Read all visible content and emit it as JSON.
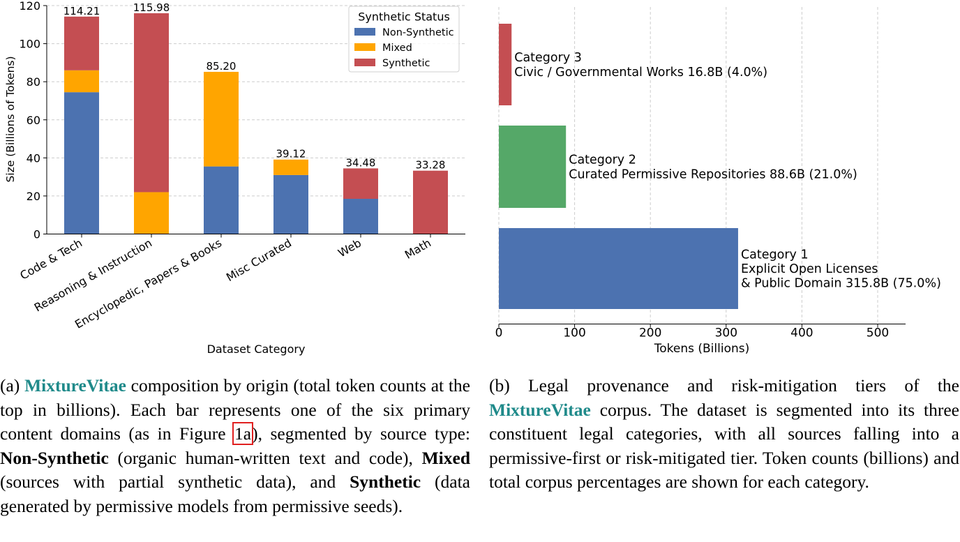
{
  "colors": {
    "non_synthetic": "#4c72b0",
    "mixed": "#ffa500",
    "synthetic": "#c44e52",
    "category1": "#4c72b0",
    "category2": "#55a868",
    "category3": "#c44e52",
    "teal": "#1f8a8a"
  },
  "chart_data": [
    {
      "type": "bar",
      "stacked": true,
      "title": "",
      "xlabel": "Dataset Category",
      "ylabel": "Size (Billions of Tokens)",
      "ylim": [
        0,
        120
      ],
      "yticks": [
        0,
        20,
        40,
        60,
        80,
        100,
        120
      ],
      "grid": "y",
      "categories": [
        "Code & Tech",
        "Reasoning & Instruction",
        "Encyclopedic, Papers & Books",
        "Misc Curated",
        "Web",
        "Math"
      ],
      "series": [
        {
          "name": "Non-Synthetic",
          "values": [
            74.5,
            0,
            35.5,
            31.0,
            18.5,
            0
          ]
        },
        {
          "name": "Mixed",
          "values": [
            11.5,
            22.0,
            49.7,
            8.12,
            0,
            0
          ]
        },
        {
          "name": "Synthetic",
          "values": [
            28.21,
            93.98,
            0,
            0,
            15.98,
            33.28
          ]
        }
      ],
      "totals": [
        "114.21",
        "115.98",
        "85.20",
        "39.12",
        "34.48",
        "33.28"
      ],
      "legend": {
        "title": "Synthetic Status",
        "position": "top-right"
      }
    },
    {
      "type": "bar",
      "orientation": "horizontal",
      "title": "",
      "xlabel": "Tokens (Billions)",
      "ylabel": "",
      "xlim": [
        0,
        540
      ],
      "xticks": [
        0,
        100,
        200,
        300,
        400,
        500
      ],
      "grid": "x",
      "categories": [
        "Category 1",
        "Category 2",
        "Category 3"
      ],
      "values": [
        315.8,
        88.6,
        16.8
      ],
      "labels": [
        [
          "Category 1",
          "Explicit Open Licenses",
          "& Public Domain 315.8B (75.0%)"
        ],
        [
          "Category 2",
          "Curated Permissive Repositories 88.6B (21.0%)"
        ],
        [
          "Category 3",
          "Civic / Governmental Works 16.8B (4.0%)"
        ]
      ]
    }
  ],
  "captions": {
    "a": {
      "label": "(a)",
      "brand": "MixtureVitae",
      "text1": " composition by origin (total token counts at the top in billions). Each bar represents one of the six primary content domains (as in Figure ",
      "figref": "1a",
      "text2": "), segmented by source type: ",
      "bold1": "Non-Synthetic",
      "text3": " (organic human-written text and code), ",
      "bold2": "Mixed",
      "text4": " (sources with partial synthetic data), and ",
      "bold3": "Synthetic",
      "text5": " (data generated by permissive models from permissive seeds)."
    },
    "b": {
      "label": "(b)",
      "text1": " Legal provenance and risk-mitigation tiers of the ",
      "brand": "MixtureVitae",
      "text2": " corpus. The dataset is segmented into its three constituent legal categories, with all sources falling into a permissive-first or risk-mitigated tier. Token counts (billions) and total corpus percentages are shown for each category."
    }
  }
}
